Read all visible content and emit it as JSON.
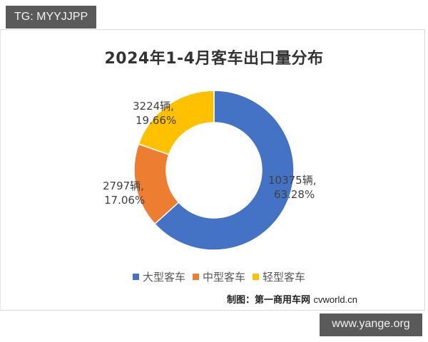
{
  "overlay": {
    "top_left_tag": "TG: MYYJJPP",
    "bottom_right_tag": "www.yange.org"
  },
  "chart": {
    "title": "2024年1-4月客车出口量分布",
    "labels": {
      "large": {
        "line1": "10375辆,",
        "line2": "63.28%"
      },
      "medium": {
        "line1": "2797辆,",
        "line2": "17.06%"
      },
      "light": {
        "line1": "3224辆,",
        "line2": "19.66%"
      }
    },
    "legend": [
      "大型客车",
      "中型客车",
      "轻型客车"
    ],
    "source_prefix": "制图：第一商用车网 ",
    "source_site": "cvworld.cn"
  },
  "colors": {
    "large": "#4472C4",
    "medium": "#ED7D31",
    "light": "#FFC000"
  },
  "chart_data": {
    "type": "pie",
    "subtype": "donut",
    "title": "2024年1-4月客车出口量分布",
    "categories": [
      "大型客车",
      "中型客车",
      "轻型客车"
    ],
    "values": [
      10375,
      2797,
      3224
    ],
    "percentages": [
      63.28,
      17.06,
      19.66
    ],
    "unit": "辆",
    "legend_position": "bottom",
    "colors": [
      "#4472C4",
      "#ED7D31",
      "#FFC000"
    ],
    "annotation": "制图：第一商用车网 cvworld.cn"
  }
}
